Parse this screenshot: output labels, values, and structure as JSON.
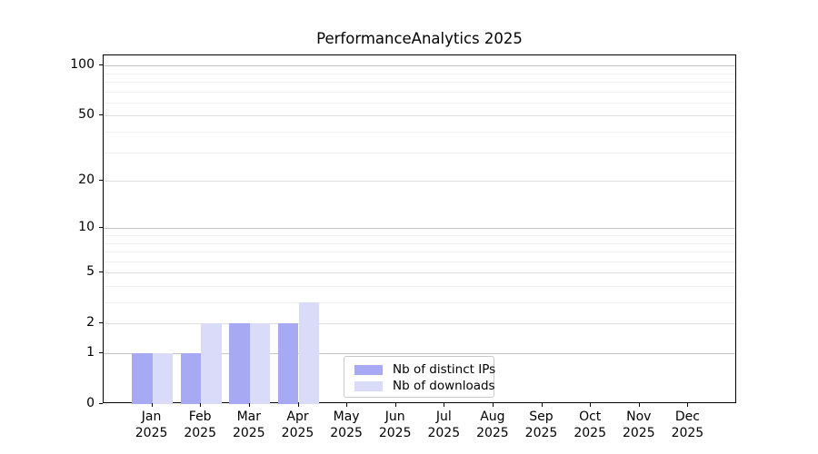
{
  "chart_data": {
    "type": "bar",
    "title": "PerformanceAnalytics 2025",
    "categories": [
      "Jan",
      "Feb",
      "Mar",
      "Apr",
      "May",
      "Jun",
      "Jul",
      "Aug",
      "Sep",
      "Oct",
      "Nov",
      "Dec"
    ],
    "x_tick_year": "2025",
    "series": [
      {
        "name": "Nb of distinct IPs",
        "color": "#a7a9f3",
        "values": [
          1,
          1,
          2,
          2,
          0,
          0,
          0,
          0,
          0,
          0,
          0,
          0
        ]
      },
      {
        "name": "Nb of downloads",
        "color": "#d9dbf9",
        "values": [
          1,
          2,
          2,
          3,
          0,
          0,
          0,
          0,
          0,
          0,
          0,
          0
        ]
      }
    ],
    "y_scale": "log1p",
    "y_ticks": [
      0,
      1,
      2,
      5,
      10,
      20,
      50,
      100
    ],
    "y_minor_gridlines": [
      3,
      4,
      6,
      7,
      8,
      9,
      30,
      40,
      60,
      70,
      80,
      90
    ],
    "ylim": [
      0,
      115
    ],
    "grid": "horizontal",
    "legend_position": "inside-bottom-center",
    "axis_color": "#000000"
  }
}
